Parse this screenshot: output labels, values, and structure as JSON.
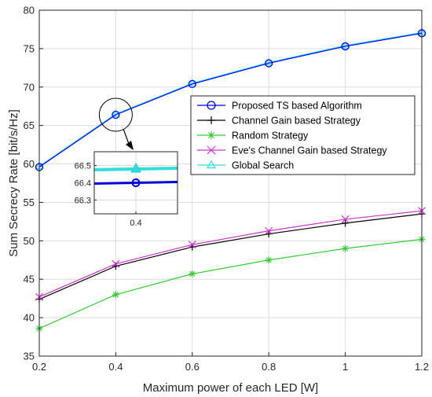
{
  "chart_data": {
    "type": "line",
    "title": "",
    "xlabel": "Maximum power of each LED [W]",
    "ylabel": "Sum Secrecy Rate [bit/s/Hz]",
    "xlim": [
      0.2,
      1.2
    ],
    "ylim": [
      35,
      80
    ],
    "grid": true,
    "legend_position": "center-right",
    "x": [
      0.2,
      0.4,
      0.6,
      0.8,
      1.0,
      1.2
    ],
    "x_ticks": [
      "0.2",
      "0.4",
      "0.6",
      "0.8",
      "1",
      "1.2"
    ],
    "y_ticks": [
      "35",
      "40",
      "45",
      "50",
      "55",
      "60",
      "65",
      "70",
      "75",
      "80"
    ],
    "series": [
      {
        "name": "Proposed TS based Algorithm",
        "color": "#0000ff",
        "marker": "circle",
        "values": [
          59.6,
          66.4,
          70.4,
          73.1,
          75.3,
          77.0
        ]
      },
      {
        "name": "Channel Gain based Strategy",
        "color": "#000000",
        "marker": "plus",
        "values": [
          42.4,
          46.7,
          49.2,
          50.9,
          52.3,
          53.5
        ]
      },
      {
        "name": "Random Strategy",
        "color": "#33cc33",
        "marker": "asterisk",
        "values": [
          38.6,
          43.0,
          45.7,
          47.5,
          49.0,
          50.2
        ]
      },
      {
        "name": "Eve's Channel Gain based Strategy",
        "color": "#cc33cc",
        "marker": "x",
        "values": [
          42.7,
          47.0,
          49.5,
          51.3,
          52.8,
          53.9
        ]
      },
      {
        "name": "Global Search",
        "color": "#33dddd",
        "marker": "triangle",
        "values": [
          59.7,
          66.5,
          70.5,
          73.2,
          75.4,
          77.1
        ]
      }
    ],
    "inset": {
      "x_ticks": [
        "0.4"
      ],
      "y_ticks": [
        "66.3",
        "66.4",
        "66.5"
      ],
      "ylim": [
        66.22,
        66.58
      ],
      "xlim": [
        0.36,
        0.44
      ],
      "values": {
        "proposed": 66.4,
        "global": 66.48
      }
    }
  }
}
